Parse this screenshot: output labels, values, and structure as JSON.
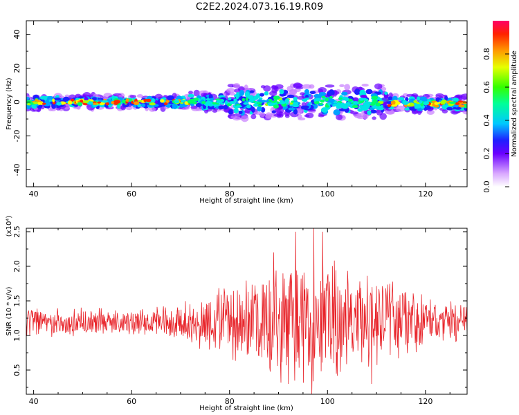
{
  "title": "C2E2.2024.073.16.19.R09",
  "colors": {
    "snr_line": "#e8242a",
    "frame": "#000000",
    "colormap": [
      "#f3e6ff",
      "#c77dff",
      "#6a00ff",
      "#1f1fff",
      "#00a0ff",
      "#00e5e5",
      "#00ff66",
      "#a8ff00",
      "#ffff00",
      "#ff9900",
      "#ff2a00",
      "#ff0066"
    ]
  },
  "chart_data": [
    {
      "type": "heatmap",
      "xlabel": "Height of straight line (km)",
      "ylabel": "Frequency (Hz)",
      "xlim": [
        38.5,
        128.5
      ],
      "ylim": [
        -50,
        48
      ],
      "xticks": [
        40,
        60,
        80,
        100,
        120
      ],
      "yticks": [
        40,
        20,
        0,
        -20,
        -40
      ],
      "xtick_labels": [
        "40",
        "60",
        "80",
        "100",
        "120"
      ],
      "ytick_labels": [
        "40",
        "20",
        "0",
        "-20",
        "-40"
      ],
      "colorbar": {
        "label": "Normalized spectral amplitude",
        "range": [
          0,
          1
        ],
        "ticks": [
          0.0,
          0.2,
          0.4,
          0.6,
          0.8
        ],
        "tick_labels": [
          "0.0",
          "0.2",
          "0.4",
          "0.6",
          "0.8"
        ]
      },
      "bands": [
        {
          "x": [
            38.5,
            72
          ],
          "y_center": 0,
          "spread_hz": 4,
          "peak_amplitude": 0.95
        },
        {
          "x": [
            72,
            80
          ],
          "y_center": 0,
          "spread_hz": 6,
          "peak_amplitude": 0.6
        },
        {
          "x": [
            80,
            112
          ],
          "y_center": 0,
          "spread_hz": 10,
          "peak_amplitude": 0.6
        },
        {
          "x": [
            112,
            128.5
          ],
          "y_center": -1,
          "spread_hz": 5,
          "peak_amplitude": 0.95
        }
      ]
    },
    {
      "type": "line",
      "xlabel": "Height of straight line (km)",
      "ylabel": "SNR (10 * v/v)",
      "scale_label": "(x10⁴)",
      "xlim": [
        38.5,
        128.5
      ],
      "ylim": [
        0.15,
        2.55
      ],
      "xticks": [
        40,
        60,
        80,
        100,
        120
      ],
      "yticks": [
        0.5,
        1.0,
        1.5,
        2.0,
        2.5
      ],
      "xtick_labels": [
        "40",
        "60",
        "80",
        "100",
        "120"
      ],
      "ytick_labels": [
        "0.5",
        "1.0",
        "1.5",
        "2.0",
        "2.5"
      ],
      "series": [
        {
          "color": "#e8242a",
          "x_range": [
            38.5,
            128.5
          ],
          "baseline": 1.2,
          "envelope": [
            {
              "x": 38.5,
              "amp": 0.25
            },
            {
              "x": 60,
              "amp": 0.2
            },
            {
              "x": 70,
              "amp": 0.3
            },
            {
              "x": 80,
              "amp": 0.6
            },
            {
              "x": 90,
              "amp": 0.9
            },
            {
              "x": 97,
              "amp": 1.1
            },
            {
              "x": 105,
              "amp": 0.8
            },
            {
              "x": 115,
              "amp": 0.6
            },
            {
              "x": 122,
              "amp": 0.35
            },
            {
              "x": 128.5,
              "amp": 0.3
            }
          ],
          "peaks": [
            {
              "x": 93.5,
              "y": 2.5
            },
            {
              "x": 97.2,
              "y": 2.55
            },
            {
              "x": 99,
              "y": 2.5
            },
            {
              "x": 89,
              "y": 2.2
            }
          ],
          "troughs": [
            {
              "x": 96.8,
              "y": 0.15
            },
            {
              "x": 92,
              "y": 0.3
            },
            {
              "x": 109,
              "y": 0.3
            }
          ]
        }
      ]
    }
  ]
}
